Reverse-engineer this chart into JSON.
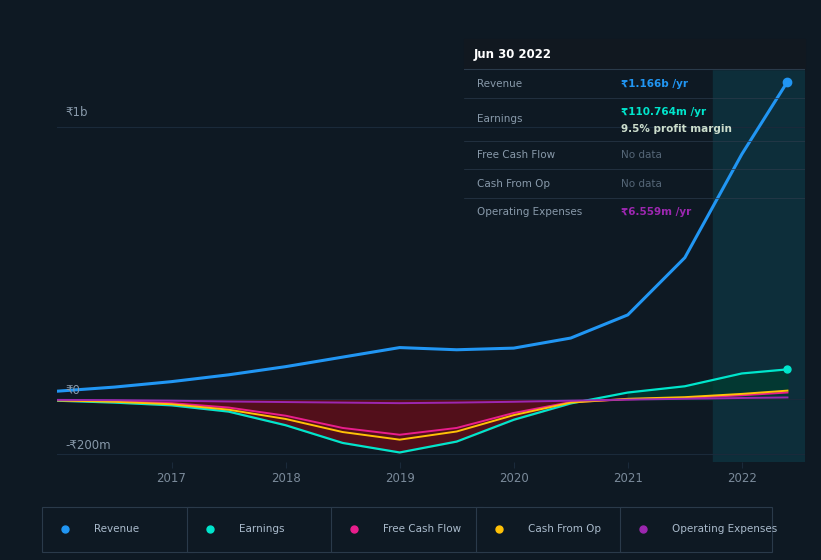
{
  "bg_color": "#0e1923",
  "plot_bg_color": "#0e1923",
  "title_box_bg": "#0a0f14",
  "title_box_border": "#2a3a4a",
  "x_years": [
    2016.0,
    2016.5,
    2017.0,
    2017.5,
    2018.0,
    2018.5,
    2019.0,
    2019.5,
    2020.0,
    2020.5,
    2021.0,
    2021.5,
    2022.0,
    2022.4
  ],
  "revenue": [
    30,
    45,
    65,
    90,
    120,
    155,
    190,
    182,
    188,
    225,
    310,
    520,
    900,
    1166
  ],
  "earnings": [
    -5,
    -12,
    -22,
    -45,
    -95,
    -160,
    -195,
    -155,
    -75,
    -15,
    25,
    48,
    95,
    110
  ],
  "free_cash_flow": [
    -3,
    -7,
    -14,
    -30,
    -60,
    -105,
    -130,
    -105,
    -50,
    -10,
    0,
    5,
    15,
    25
  ],
  "cash_from_op": [
    -4,
    -9,
    -18,
    -38,
    -72,
    -120,
    -148,
    -118,
    -58,
    -12,
    2,
    8,
    20,
    32
  ],
  "operating_expenses": [
    -2,
    -3,
    -5,
    -8,
    -10,
    -12,
    -14,
    -12,
    -9,
    -5,
    -1,
    2,
    5,
    7
  ],
  "highlight_x_start": 2021.75,
  "highlight_x_end": 2022.55,
  "ylim": [
    -230,
    1250
  ],
  "y_zero": 0,
  "y_1b": 1000,
  "y_neg200": -200,
  "xticks": [
    2017,
    2018,
    2019,
    2020,
    2021,
    2022
  ],
  "xlim_start": 2016.0,
  "xlim_end": 2022.55,
  "legend": [
    {
      "label": "Revenue",
      "color": "#2196f3"
    },
    {
      "label": "Earnings",
      "color": "#00e5cc"
    },
    {
      "label": "Free Cash Flow",
      "color": "#e91e8c"
    },
    {
      "label": "Cash From Op",
      "color": "#ffc107"
    },
    {
      "label": "Operating Expenses",
      "color": "#9c27b0"
    }
  ],
  "revenue_color": "#2196f3",
  "earnings_color": "#00e5cc",
  "fcf_color": "#e91e8c",
  "cfop_color": "#ffc107",
  "opex_color": "#9c27b0",
  "fill_neg_color": "#5a0e1a",
  "fill_pos_color": "#003d30",
  "highlight_teal_color": "#0d2e3a",
  "grid_line_color": "#1a2a3a",
  "axis_label_color": "#8899aa",
  "tick_label_color": "#7a8a9a",
  "info_date": "Jun 30 2022",
  "info_rows": [
    {
      "label": "Revenue",
      "value": "₹1.166b /yr",
      "value_color": "#2196f3",
      "extra": null
    },
    {
      "label": "Earnings",
      "value": "₹110.764m /yr",
      "value_color": "#00e5cc",
      "extra": "9.5% profit margin"
    },
    {
      "label": "Free Cash Flow",
      "value": "No data",
      "value_color": "#556677",
      "extra": null
    },
    {
      "label": "Cash From Op",
      "value": "No data",
      "value_color": "#556677",
      "extra": null
    },
    {
      "label": "Operating Expenses",
      "value": "₹6.559m /yr",
      "value_color": "#9c27b0",
      "extra": null
    }
  ]
}
